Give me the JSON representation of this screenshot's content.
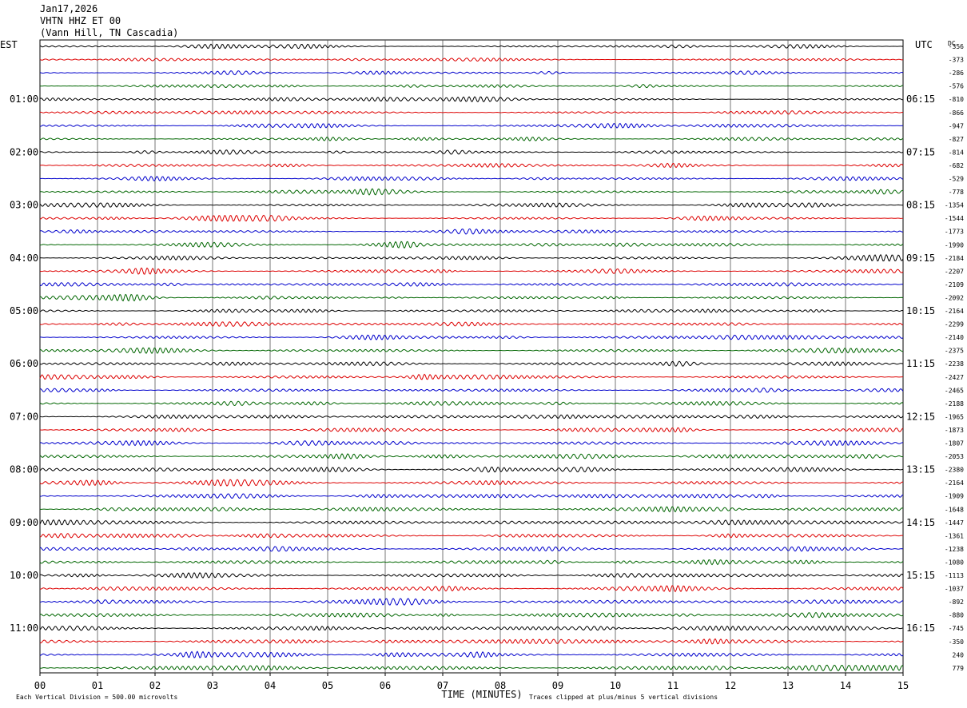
{
  "header": {
    "date": "Jan17,2026",
    "station": "VHTN HHZ ET 00",
    "location": "(Vann Hill, TN Cascadia)"
  },
  "chart_data": {
    "type": "line",
    "title": "Jan17,2026",
    "left_axis_label": "EST",
    "right_axis_label": "UTC",
    "dc_label": "DC",
    "xlabel": "TIME (MINUTES)",
    "xlim": [
      0,
      15
    ],
    "x_ticks": [
      "00",
      "01",
      "02",
      "03",
      "04",
      "05",
      "06",
      "07",
      "08",
      "09",
      "10",
      "11",
      "12",
      "13",
      "14",
      "15"
    ],
    "left_hour_labels": [
      "01:00",
      "02:00",
      "03:00",
      "04:00",
      "05:00",
      "06:00",
      "07:00",
      "08:00",
      "09:00",
      "10:00",
      "11:00"
    ],
    "right_hour_labels": [
      "06:15",
      "07:15",
      "08:15",
      "09:15",
      "10:15",
      "11:15",
      "12:15",
      "13:15",
      "14:15",
      "15:15",
      "16:15"
    ],
    "trace_colors": [
      "#000000",
      "#dd0000",
      "#0000cc",
      "#006600"
    ],
    "dc_offsets": [
      "-356",
      "-373",
      "-286",
      "-576",
      "-810",
      "-866",
      "-947",
      "-827",
      "-814",
      "-682",
      "-529",
      "-778",
      "-1354",
      "-1544",
      "-1773",
      "-1990",
      "-2184",
      "-2207",
      "-2109",
      "-2092",
      "-2164",
      "-2299",
      "-2140",
      "-2375",
      "-2238",
      "-2427",
      "-2465",
      "-2188",
      "-1965",
      "-1873",
      "-1807",
      "-2053",
      "-2380",
      "-2164",
      "-1909",
      "-1648",
      "-1447",
      "-1361",
      "-1238",
      "-1080",
      "-1113",
      "-1037",
      "-892",
      "-880",
      "-745",
      "-350",
      "240",
      "779"
    ],
    "trace_count": 48,
    "minutes_per_trace": 15,
    "grid": true
  },
  "footer": {
    "scale_note": "Each Vertical Division =  500.00 microvolts",
    "clip_note": "Traces clipped at plus/minus 5 vertical divisions"
  }
}
